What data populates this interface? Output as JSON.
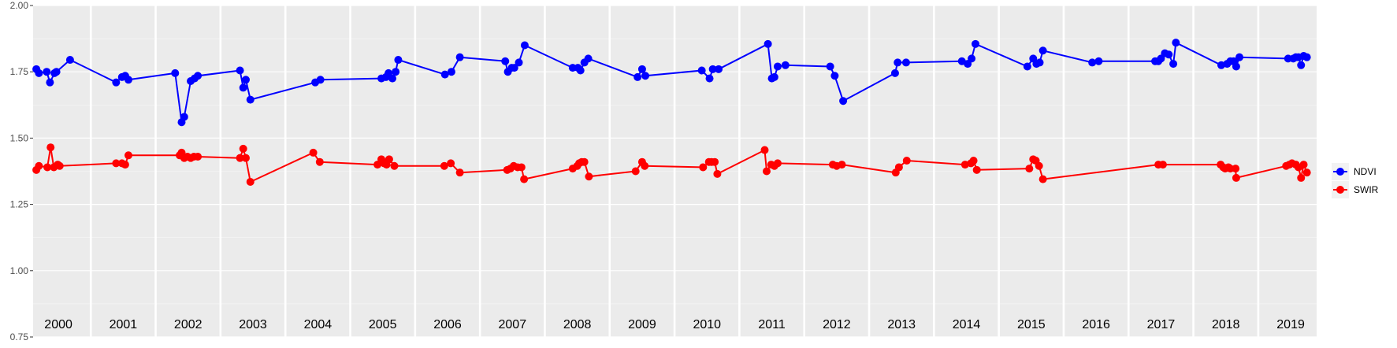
{
  "chart_data": {
    "type": "line",
    "title": "",
    "xlabel": "",
    "ylabel": "",
    "ylim": [
      0.75,
      2.0
    ],
    "yticks": [
      "0.75",
      "1.00",
      "1.25",
      "1.50",
      "1.75",
      "2.00"
    ],
    "xlim": [
      1999.61,
      2019.4
    ],
    "years": [
      "2000",
      "2001",
      "2002",
      "2003",
      "2004",
      "2005",
      "2006",
      "2007",
      "2008",
      "2009",
      "2010",
      "2011",
      "2012",
      "2013",
      "2014",
      "2015",
      "2016",
      "2017",
      "2018",
      "2019"
    ],
    "grid": true,
    "legend_position": "right",
    "series": [
      {
        "name": "NDVI",
        "color": "#0000ff",
        "x": [
          1999.66,
          1999.7,
          1999.82,
          1999.87,
          1999.94,
          1999.97,
          2000.18,
          2000.89,
          2000.98,
          2001.03,
          2001.08,
          2001.8,
          2001.9,
          2001.94,
          2002.04,
          2002.1,
          2002.15,
          2002.8,
          2002.85,
          2002.89,
          2002.96,
          2003.96,
          2004.04,
          2004.98,
          2005.05,
          2005.09,
          2005.15,
          2005.2,
          2005.24,
          2005.96,
          2006.06,
          2006.19,
          2006.89,
          2006.93,
          2006.99,
          2007.03,
          2007.1,
          2007.19,
          2007.93,
          2008.01,
          2008.05,
          2008.11,
          2008.17,
          2008.93,
          2009.0,
          2009.05,
          2009.92,
          2010.04,
          2010.09,
          2010.18,
          2010.94,
          2011.0,
          2011.04,
          2011.09,
          2011.21,
          2011.9,
          2011.97,
          2012.1,
          2012.9,
          2012.94,
          2013.07,
          2013.93,
          2014.02,
          2014.08,
          2014.14,
          2014.94,
          2015.03,
          2015.08,
          2015.13,
          2015.18,
          2015.94,
          2016.04,
          2016.91,
          2016.96,
          2017.0,
          2017.06,
          2017.12,
          2017.19,
          2017.23,
          2017.93,
          2018.02,
          2018.07,
          2018.12,
          2018.16,
          2018.21,
          2018.96,
          2019.04,
          2019.08,
          2019.12,
          2019.16,
          2019.2,
          2019.25
        ],
        "y": [
          1.76,
          1.745,
          1.75,
          1.71,
          1.745,
          1.75,
          1.795,
          1.71,
          1.73,
          1.735,
          1.72,
          1.745,
          1.56,
          1.58,
          1.715,
          1.725,
          1.735,
          1.755,
          1.69,
          1.72,
          1.645,
          1.71,
          1.72,
          1.725,
          1.73,
          1.745,
          1.725,
          1.75,
          1.795,
          1.74,
          1.75,
          1.805,
          1.79,
          1.75,
          1.765,
          1.765,
          1.785,
          1.85,
          1.765,
          1.765,
          1.755,
          1.785,
          1.8,
          1.73,
          1.76,
          1.735,
          1.755,
          1.725,
          1.76,
          1.76,
          1.855,
          1.725,
          1.73,
          1.77,
          1.775,
          1.77,
          1.735,
          1.64,
          1.745,
          1.785,
          1.785,
          1.79,
          1.78,
          1.8,
          1.855,
          1.77,
          1.8,
          1.78,
          1.785,
          1.83,
          1.785,
          1.79,
          1.79,
          1.79,
          1.8,
          1.82,
          1.815,
          1.78,
          1.86,
          1.775,
          1.78,
          1.79,
          1.79,
          1.77,
          1.805,
          1.8,
          1.8,
          1.805,
          1.805,
          1.775,
          1.81,
          1.805
        ]
      },
      {
        "name": "SWIR",
        "color": "#ff0000",
        "x": [
          1999.66,
          1999.7,
          1999.83,
          1999.88,
          1999.93,
          1999.99,
          2000.02,
          2000.89,
          2000.98,
          2001.03,
          2001.08,
          2001.87,
          2001.9,
          2001.94,
          2001.99,
          2002.04,
          2002.09,
          2002.15,
          2002.8,
          2002.85,
          2002.89,
          2002.96,
          2003.93,
          2004.03,
          2004.92,
          2004.98,
          2005.02,
          2005.06,
          2005.1,
          2005.18,
          2005.95,
          2006.05,
          2006.19,
          2006.92,
          2006.97,
          2007.02,
          2007.08,
          2007.14,
          2007.18,
          2007.93,
          2008.0,
          2008.03,
          2008.07,
          2008.11,
          2008.18,
          2008.9,
          2009.0,
          2009.04,
          2009.94,
          2010.03,
          2010.07,
          2010.12,
          2010.16,
          2010.89,
          2010.92,
          2010.99,
          2011.04,
          2011.09,
          2011.94,
          2012.0,
          2012.08,
          2012.91,
          2012.96,
          2013.08,
          2013.98,
          2014.07,
          2014.11,
          2014.16,
          2014.97,
          2015.03,
          2015.07,
          2015.12,
          2015.18,
          2016.96,
          2017.03,
          2017.92,
          2017.96,
          2017.99,
          2018.04,
          2018.07,
          2018.15,
          2018.16,
          2018.93,
          2018.98,
          2019.02,
          2019.08,
          2019.12,
          2019.16,
          2019.2,
          2019.25
        ],
        "y": [
          1.38,
          1.395,
          1.39,
          1.465,
          1.39,
          1.4,
          1.395,
          1.405,
          1.405,
          1.4,
          1.435,
          1.435,
          1.445,
          1.425,
          1.43,
          1.425,
          1.43,
          1.43,
          1.425,
          1.46,
          1.425,
          1.335,
          1.445,
          1.41,
          1.4,
          1.42,
          1.405,
          1.4,
          1.42,
          1.395,
          1.395,
          1.405,
          1.37,
          1.38,
          1.385,
          1.395,
          1.39,
          1.39,
          1.345,
          1.385,
          1.395,
          1.405,
          1.41,
          1.41,
          1.355,
          1.375,
          1.41,
          1.395,
          1.39,
          1.41,
          1.41,
          1.41,
          1.365,
          1.455,
          1.375,
          1.4,
          1.395,
          1.405,
          1.4,
          1.395,
          1.4,
          1.37,
          1.39,
          1.415,
          1.4,
          1.405,
          1.415,
          1.38,
          1.385,
          1.42,
          1.415,
          1.395,
          1.345,
          1.4,
          1.4,
          1.4,
          1.39,
          1.385,
          1.39,
          1.385,
          1.385,
          1.35,
          1.395,
          1.4,
          1.405,
          1.4,
          1.39,
          1.35,
          1.4,
          1.37
        ]
      }
    ]
  }
}
